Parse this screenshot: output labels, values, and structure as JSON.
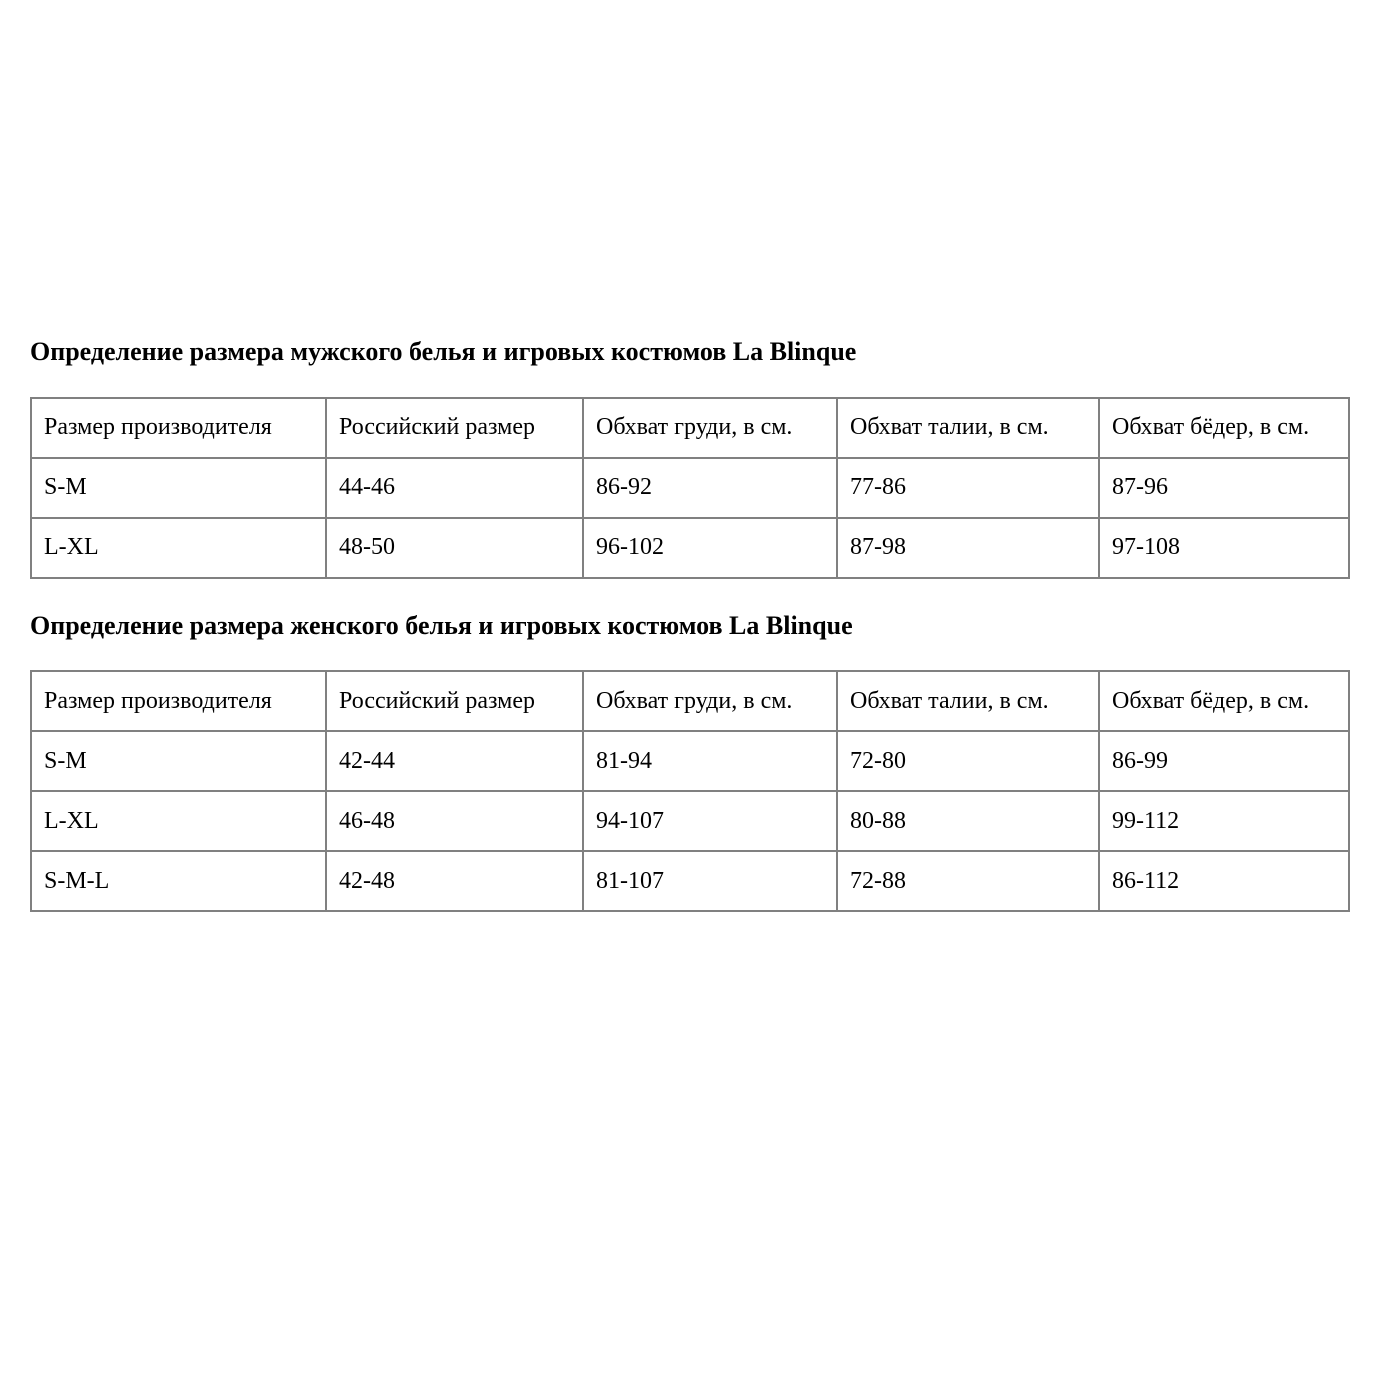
{
  "colors": {
    "background": "#ffffff",
    "text": "#000000",
    "table_border": "#808080"
  },
  "sections": [
    {
      "heading": "Определение размера мужского белья и игровых костюмов La Blinque",
      "table": {
        "headers": [
          "Размер производителя",
          "Российский размер",
          "Обхват груди, в см.",
          "Обхват талии, в см.",
          "Обхват бёдер, в см."
        ],
        "rows": [
          [
            "S-M",
            "44-46",
            "86-92",
            "77-86",
            "87-96"
          ],
          [
            "L-XL",
            "48-50",
            "96-102",
            "87-98",
            "97-108"
          ]
        ]
      }
    },
    {
      "heading": "Определение размера женского белья и игровых костюмов La Blinque",
      "table": {
        "headers": [
          "Размер производителя",
          "Российский размер",
          "Обхват груди, в см.",
          "Обхват талии, в см.",
          "Обхват бёдер, в см."
        ],
        "rows": [
          [
            "S-M",
            "42-44",
            "81-94",
            "72-80",
            "86-99"
          ],
          [
            "L-XL",
            "46-48",
            "94-107",
            "80-88",
            "99-112"
          ],
          [
            "S-M-L",
            "42-48",
            "81-107",
            "72-88",
            "86-112"
          ]
        ]
      }
    }
  ]
}
